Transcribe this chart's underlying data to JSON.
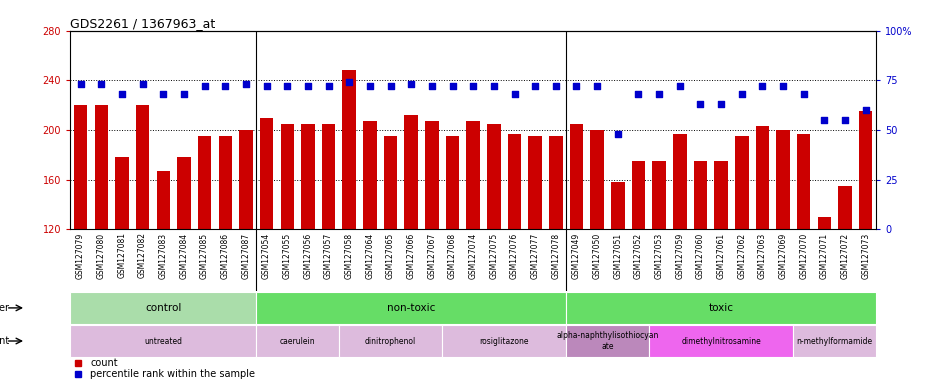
{
  "title": "GDS2261 / 1367963_at",
  "bar_color": "#cc0000",
  "dot_color": "#0000cc",
  "ylim_left": [
    120,
    280
  ],
  "ylim_right": [
    0,
    100
  ],
  "yticks_left": [
    120,
    160,
    200,
    240,
    280
  ],
  "yticks_right": [
    0,
    25,
    50,
    75,
    100
  ],
  "samples": [
    "GSM127079",
    "GSM127080",
    "GSM127081",
    "GSM127082",
    "GSM127083",
    "GSM127084",
    "GSM127085",
    "GSM127086",
    "GSM127087",
    "GSM127054",
    "GSM127055",
    "GSM127056",
    "GSM127057",
    "GSM127058",
    "GSM127064",
    "GSM127065",
    "GSM127066",
    "GSM127067",
    "GSM127068",
    "GSM127074",
    "GSM127075",
    "GSM127076",
    "GSM127077",
    "GSM127078",
    "GSM127049",
    "GSM127050",
    "GSM127051",
    "GSM127052",
    "GSM127053",
    "GSM127059",
    "GSM127060",
    "GSM127061",
    "GSM127062",
    "GSM127063",
    "GSM127069",
    "GSM127070",
    "GSM127071",
    "GSM127072",
    "GSM127073"
  ],
  "bar_values": [
    220,
    220,
    178,
    220,
    167,
    178,
    195,
    195,
    200,
    210,
    205,
    205,
    205,
    248,
    207,
    195,
    212,
    207,
    195,
    207,
    205,
    197,
    195,
    195,
    205,
    200,
    158,
    175,
    175,
    197,
    175,
    175,
    195,
    203,
    200,
    197,
    130,
    155,
    215
  ],
  "dot_values": [
    73,
    73,
    68,
    73,
    68,
    68,
    72,
    72,
    73,
    72,
    72,
    72,
    72,
    74,
    72,
    72,
    73,
    72,
    72,
    72,
    72,
    68,
    72,
    72,
    72,
    72,
    48,
    68,
    68,
    72,
    63,
    63,
    68,
    72,
    72,
    68,
    55,
    55,
    60
  ],
  "other_groups": [
    {
      "label": "control",
      "start": 0,
      "end": 9,
      "color": "#aaddaa"
    },
    {
      "label": "non-toxic",
      "start": 9,
      "end": 24,
      "color": "#66dd66"
    },
    {
      "label": "toxic",
      "start": 24,
      "end": 39,
      "color": "#66dd66"
    }
  ],
  "agent_groups": [
    {
      "label": "untreated",
      "start": 0,
      "end": 9,
      "color": "#ddbbdd"
    },
    {
      "label": "caerulein",
      "start": 9,
      "end": 13,
      "color": "#ddbbdd"
    },
    {
      "label": "dinitrophenol",
      "start": 13,
      "end": 18,
      "color": "#ddbbdd"
    },
    {
      "label": "rosiglitazone",
      "start": 18,
      "end": 24,
      "color": "#ddbbdd"
    },
    {
      "label": "alpha-naphthylisothiocyan\nate",
      "start": 24,
      "end": 28,
      "color": "#bb88bb"
    },
    {
      "label": "dimethylnitrosamine",
      "start": 28,
      "end": 35,
      "color": "#ee66ee"
    },
    {
      "label": "n-methylformamide",
      "start": 35,
      "end": 39,
      "color": "#ddbbdd"
    }
  ],
  "background_color": "#ffffff",
  "tick_bg_color": "#d8d8d8"
}
